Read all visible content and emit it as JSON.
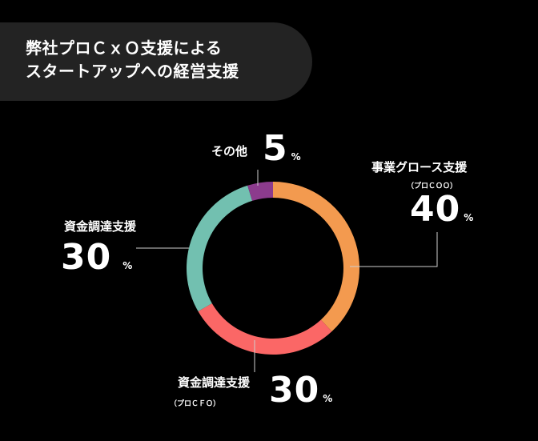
{
  "header": {
    "line1": "弊社プロＣｘＯ支援による",
    "line2": "スタートアップへの経営支援"
  },
  "colors": {
    "background": "#000000",
    "header_bg": "#232323",
    "orange": "#f39a4f",
    "red": "#fb6766",
    "teal": "#72c0b0",
    "purple": "#8c3b8d",
    "leader_line": "#cfcfcf"
  },
  "chart_data": {
    "type": "donut",
    "segments": [
      {
        "name": "事業グロース支援",
        "sub": "（プロＣＯＯ）",
        "value": 40,
        "unit": "%",
        "color": "#f39a4f"
      },
      {
        "name": "資金調達支援",
        "sub": "（プロＣＦＯ）",
        "value": 30,
        "unit": "%",
        "color": "#fb6766"
      },
      {
        "name": "資金調達支援",
        "sub": "",
        "value": 30,
        "unit": "%",
        "color": "#72c0b0"
      },
      {
        "name": "その他",
        "sub": "",
        "value": 5,
        "unit": "%",
        "color": "#8c3b8d"
      }
    ]
  }
}
